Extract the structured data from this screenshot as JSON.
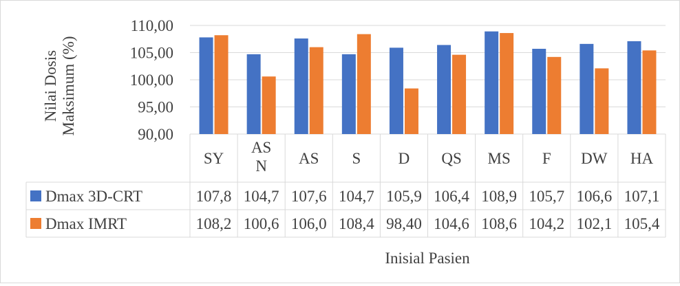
{
  "chart_data": {
    "type": "bar",
    "title": "",
    "xlabel": "Inisial Pasien",
    "ylabel_lines": [
      "Nilai Dosis",
      "Maksimum (%)"
    ],
    "categories": [
      "SY",
      "AS N",
      "AS",
      "S",
      "D",
      "QS",
      "MS",
      "F",
      "DW",
      "HA"
    ],
    "category_lines": [
      [
        "SY"
      ],
      [
        "AS",
        "N"
      ],
      [
        "AS"
      ],
      [
        "S"
      ],
      [
        "D"
      ],
      [
        "QS"
      ],
      [
        "MS"
      ],
      [
        "F"
      ],
      [
        "DW"
      ],
      [
        "HA"
      ]
    ],
    "ylim": [
      90,
      110
    ],
    "yticks": [
      "90,00",
      "95,00",
      "100,00",
      "105,00",
      "110,00"
    ],
    "grid": true,
    "legend": "data-table",
    "series": [
      {
        "name": "Dmax 3D-CRT",
        "color": "#4472c4",
        "values": [
          107.8,
          104.7,
          107.6,
          104.7,
          105.9,
          106.4,
          108.9,
          105.7,
          106.6,
          107.1
        ],
        "labels": [
          "107,8",
          "104,7",
          "107,6",
          "104,7",
          "105,9",
          "106,4",
          "108,9",
          "105,7",
          "106,6",
          "107,1"
        ]
      },
      {
        "name": "Dmax IMRT",
        "color": "#ed7d31",
        "values": [
          108.2,
          100.6,
          106.0,
          108.4,
          98.4,
          104.6,
          108.6,
          104.2,
          102.1,
          105.4
        ],
        "labels": [
          "108,2",
          "100,6",
          "106,0",
          "108,4",
          "98,40",
          "104,6",
          "108,6",
          "104,2",
          "102,1",
          "105,4"
        ]
      }
    ]
  }
}
